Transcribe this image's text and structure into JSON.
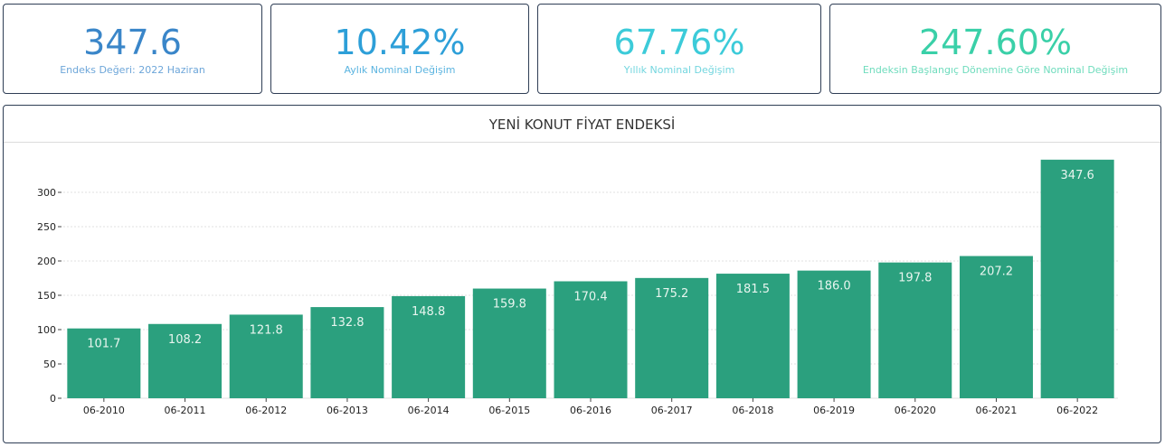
{
  "kpis": [
    {
      "value": "347.6",
      "label": "Endeks Değeri: 2022 Haziran",
      "color": "#3a86c9",
      "label_color": "#6da6d9"
    },
    {
      "value": "10.42%",
      "label": "Aylık Nominal Değişim",
      "color": "#2d9fd8",
      "label_color": "#5bb4e0"
    },
    {
      "value": "67.76%",
      "label": "Yıllık Nominal Değişim",
      "color": "#3ccbd9",
      "label_color": "#73d6df"
    },
    {
      "value": "247.60%",
      "label": "Endeksin Başlangıç Dönemine Göre Nominal Değişim",
      "color": "#3ad0a8",
      "label_color": "#6fdcbd"
    }
  ],
  "panel": {
    "title": "YENİ KONUT FİYAT ENDEKSİ"
  },
  "chart_data": {
    "type": "bar",
    "title": "YENİ KONUT FİYAT ENDEKSİ",
    "categories": [
      "06-2010",
      "06-2011",
      "06-2012",
      "06-2013",
      "06-2014",
      "06-2015",
      "06-2016",
      "06-2017",
      "06-2018",
      "06-2019",
      "06-2020",
      "06-2021",
      "06-2022"
    ],
    "values": [
      101.7,
      108.2,
      121.8,
      132.8,
      148.8,
      159.8,
      170.4,
      175.2,
      181.5,
      186.0,
      197.8,
      207.2,
      347.6
    ],
    "yticks": [
      0,
      50,
      100,
      150,
      200,
      250,
      300
    ],
    "ylim": [
      0,
      347.6
    ],
    "grid": true,
    "bar_color": "#2ba07e",
    "label_color": "#e8f5ef"
  }
}
